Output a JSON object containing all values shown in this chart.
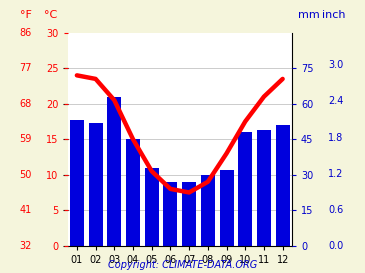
{
  "months": [
    "01",
    "02",
    "03",
    "04",
    "05",
    "06",
    "07",
    "08",
    "09",
    "10",
    "11",
    "12"
  ],
  "precipitation_mm": [
    53,
    52,
    63,
    45,
    33,
    27,
    27,
    30,
    32,
    48,
    49,
    51
  ],
  "temperature_c": [
    24.0,
    23.5,
    20.5,
    15.0,
    10.5,
    8.0,
    7.5,
    9.0,
    13.0,
    17.5,
    21.0,
    23.5
  ],
  "bar_color": "#0000dd",
  "line_color": "#ff0000",
  "red_color": "#ff0000",
  "blue_color": "#0000cc",
  "temp_c_ticks": [
    0,
    5,
    10,
    15,
    20,
    25,
    30
  ],
  "temp_f_ticks": [
    32,
    41,
    50,
    59,
    68,
    77,
    86
  ],
  "precip_mm_ticks": [
    0,
    15,
    30,
    45,
    60,
    75
  ],
  "precip_inch_ticks": [
    0.0,
    0.6,
    1.2,
    1.8,
    2.4,
    3.0
  ],
  "label_f": "°F",
  "label_c": "°C",
  "label_mm": "mm",
  "label_inch": "inch",
  "copyright": "Copyright: CLIMATE-DATA.ORG",
  "bg_color": "#f5f5dc",
  "plot_bg_color": "#ffffff",
  "grid_color": "#cccccc",
  "tick_fontsize": 7,
  "header_fontsize": 8,
  "copyright_fontsize": 7,
  "temp_c_ylim": [
    0,
    30
  ],
  "precip_mm_ylim": [
    0,
    90
  ],
  "line_width": 3.2
}
